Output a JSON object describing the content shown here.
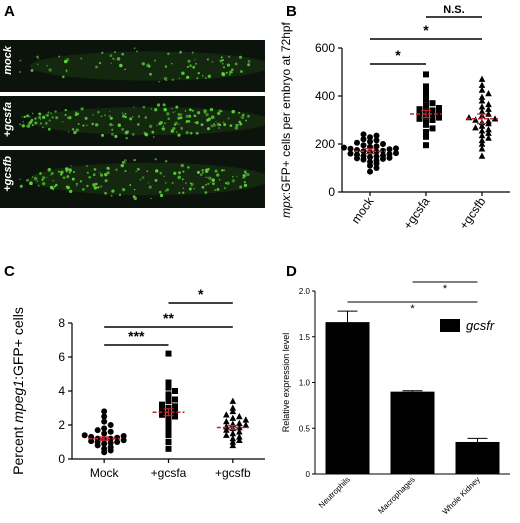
{
  "panel_letters": [
    "A",
    "B",
    "C",
    "D"
  ],
  "panel_a": {
    "strips": [
      {
        "label": "mock",
        "density": 0.45
      },
      {
        "label": "+gcsfa",
        "density": 1.0
      },
      {
        "label": "+gcsfb",
        "density": 0.9
      }
    ]
  },
  "colors": {
    "point": "#000000",
    "mean": "#c0272d",
    "fluor": "#5dd43a",
    "bar": "#000000"
  },
  "chart_data": [
    {
      "type": "scatter",
      "ylabel_italic": "mpx",
      "ylabel_rest": ":GFP+ cells per embryo at 72hpf",
      "categories": [
        "mock",
        "+gcsfa",
        "+gcsfb"
      ],
      "markers": [
        "circle",
        "square",
        "triangle"
      ],
      "ylim": [
        0,
        600
      ],
      "yticks": [
        "0",
        "200",
        "400",
        "600"
      ],
      "means": [
        170,
        325,
        305
      ],
      "sems": [
        10,
        15,
        20
      ],
      "series": [
        {
          "name": "mock",
          "values": [
            85,
            100,
            110,
            118,
            125,
            130,
            135,
            138,
            140,
            142,
            145,
            148,
            150,
            152,
            155,
            158,
            160,
            162,
            165,
            168,
            170,
            172,
            175,
            178,
            180,
            182,
            185,
            188,
            190,
            195,
            200,
            205,
            210,
            215,
            220,
            228,
            235,
            240
          ]
        },
        {
          "name": "+gcsfa",
          "values": [
            195,
            230,
            250,
            265,
            280,
            290,
            300,
            305,
            310,
            315,
            320,
            325,
            330,
            335,
            340,
            345,
            350,
            360,
            370,
            385,
            400,
            420,
            440,
            490
          ]
        },
        {
          "name": "+gcsfb",
          "values": [
            150,
            180,
            200,
            215,
            225,
            235,
            245,
            255,
            260,
            268,
            275,
            285,
            290,
            295,
            300,
            305,
            310,
            318,
            325,
            335,
            345,
            355,
            365,
            380,
            395,
            410,
            425,
            445,
            470
          ]
        }
      ],
      "comparisons": [
        {
          "from": 0,
          "to": 1,
          "label": "*"
        },
        {
          "from": 0,
          "to": 2,
          "label": "*"
        },
        {
          "from": 1,
          "to": 2,
          "label": "N.S."
        }
      ]
    },
    {
      "type": "scatter",
      "ylabel_pre": "Percent ",
      "ylabel_italic": "mpeg1",
      "ylabel_rest": ":GFP+ cells",
      "categories": [
        "Mock",
        "+gcsfa",
        "+gcsfb"
      ],
      "markers": [
        "circle",
        "square",
        "triangle"
      ],
      "ylim": [
        0,
        8
      ],
      "yticks": [
        "0",
        "2",
        "4",
        "6",
        "8"
      ],
      "means": [
        1.2,
        2.75,
        1.85
      ],
      "sems": [
        0.1,
        0.2,
        0.12
      ],
      "series": [
        {
          "name": "Mock",
          "values": [
            0.4,
            0.5,
            0.6,
            0.7,
            0.8,
            0.9,
            0.95,
            1.0,
            1.0,
            1.05,
            1.1,
            1.15,
            1.2,
            1.2,
            1.25,
            1.3,
            1.35,
            1.4,
            1.5,
            1.6,
            1.7,
            1.8,
            2.0,
            2.2,
            2.5,
            2.8
          ]
        },
        {
          "name": "+gcsfa",
          "values": [
            0.6,
            1.0,
            1.4,
            1.7,
            2.0,
            2.2,
            2.4,
            2.5,
            2.6,
            2.7,
            2.8,
            2.9,
            3.0,
            3.1,
            3.2,
            3.4,
            3.5,
            3.7,
            3.8,
            4.0,
            4.2,
            4.5,
            6.2
          ]
        },
        {
          "name": "+gcsfb",
          "values": [
            0.8,
            1.0,
            1.1,
            1.2,
            1.3,
            1.4,
            1.5,
            1.6,
            1.7,
            1.8,
            1.85,
            1.9,
            2.0,
            2.05,
            2.1,
            2.2,
            2.3,
            2.4,
            2.5,
            2.6,
            2.8,
            3.0,
            3.4
          ]
        }
      ],
      "comparisons": [
        {
          "from": 0,
          "to": 1,
          "label": "***"
        },
        {
          "from": 0,
          "to": 2,
          "label": "**"
        },
        {
          "from": 1,
          "to": 2,
          "label": "*"
        }
      ]
    },
    {
      "type": "bar",
      "ylabel": "Relative expression level",
      "categories": [
        "Neutrophils",
        "Macrophages",
        "Whole Kidney"
      ],
      "values": [
        1.66,
        0.9,
        0.35
      ],
      "errors": [
        0.12,
        0.01,
        0.04
      ],
      "ylim": [
        0,
        2.0
      ],
      "yticks": [
        "0",
        "0.5",
        "1.0",
        "1.5",
        "2.0"
      ],
      "legend": {
        "label": "gcsfr",
        "placement": "top-right"
      },
      "comparisons": [
        {
          "from": 0,
          "to": 2,
          "label": "*"
        },
        {
          "from": 1,
          "to": 2,
          "label": "*"
        }
      ]
    }
  ]
}
